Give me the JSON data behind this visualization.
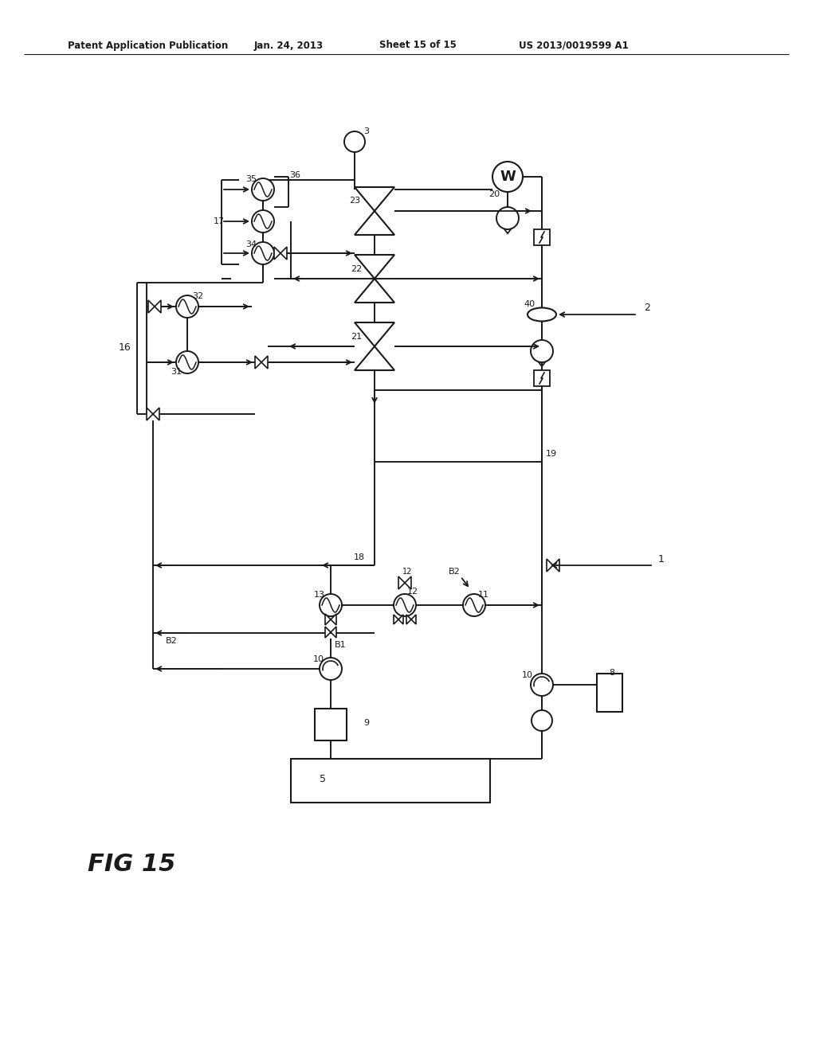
{
  "background_color": "#ffffff",
  "line_color": "#1a1a1a",
  "text_color": "#1a1a1a",
  "header_left": "Patent Application Publication",
  "header_date": "Jan. 24, 2013",
  "header_sheet": "Sheet 15 of 15",
  "header_patent": "US 2013/0019599 A1",
  "fig_label": "FIG 15",
  "fig_number": "15"
}
